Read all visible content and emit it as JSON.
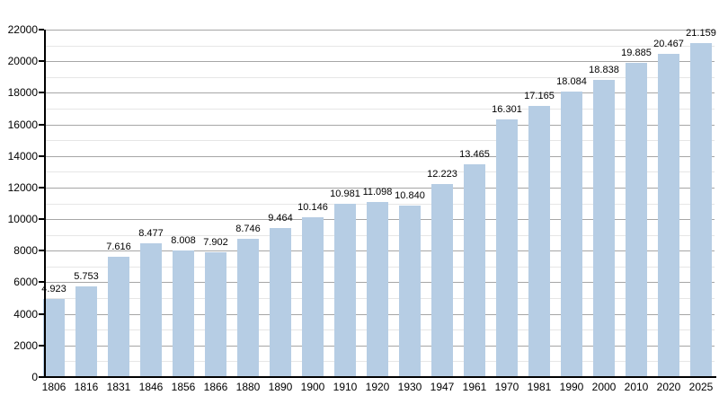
{
  "chart_data": {
    "type": "bar",
    "title": "",
    "xlabel": "",
    "ylabel": "",
    "categories": [
      "1806",
      "1816",
      "1831",
      "1846",
      "1856",
      "1866",
      "1880",
      "1890",
      "1900",
      "1910",
      "1920",
      "1930",
      "1947",
      "1961",
      "1970",
      "1981",
      "1990",
      "2000",
      "2010",
      "2020",
      "2025"
    ],
    "values": [
      4923,
      5753,
      7616,
      8477,
      8008,
      7902,
      8746,
      9464,
      10146,
      10981,
      11098,
      10840,
      12223,
      13465,
      16301,
      17165,
      18084,
      18838,
      19885,
      20467,
      21159
    ],
    "bar_labels": [
      "4.923",
      "5.753",
      "7.616",
      "8.477",
      "8.008",
      "7.902",
      "8.746",
      "9.464",
      "10.146",
      "10.981",
      "11.098",
      "10.840",
      "12.223",
      "13.465",
      "16.301",
      "17.165",
      "18.084",
      "18.838",
      "19.885",
      "20.467",
      "21.159"
    ],
    "ylim": [
      0,
      22000
    ],
    "ytick_major_interval": 2000,
    "ytick_minor_interval": 1000,
    "ytick_labels": [
      "0",
      "2000",
      "4000",
      "6000",
      "8000",
      "10000",
      "12000",
      "14000",
      "16000",
      "18000",
      "20000",
      "22000"
    ],
    "grid": "on",
    "legend": "none",
    "colors": {
      "bar_fill": "#b6cde4",
      "major_gridline": "#a6a6a6",
      "minor_gridline": "#e6e6e6",
      "axis": "#000000",
      "text": "#000000",
      "background": "#ffffff"
    }
  }
}
